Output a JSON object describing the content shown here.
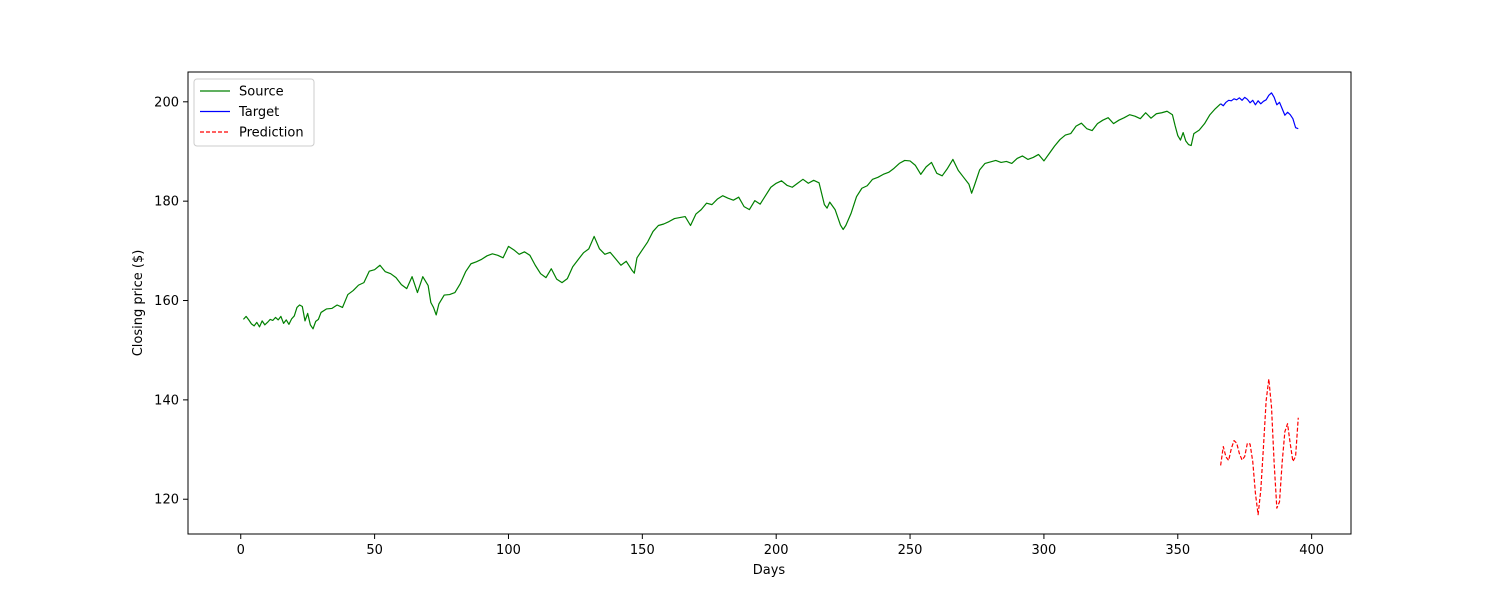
{
  "chart_data": {
    "type": "line",
    "title": "",
    "xlabel": "Days",
    "ylabel": "Closing price ($)",
    "xlim": [
      -19.7,
      414.7
    ],
    "ylim": [
      113.0,
      206.0
    ],
    "xticks": [
      0,
      50,
      100,
      150,
      200,
      250,
      300,
      350,
      400
    ],
    "yticks": [
      120,
      140,
      160,
      180,
      200
    ],
    "legend_position": "top-left",
    "series": [
      {
        "name": "Source",
        "color": "#008000",
        "dash": "solid",
        "points": [
          [
            1,
            156.2
          ],
          [
            2,
            156.8
          ],
          [
            3,
            156.1
          ],
          [
            4,
            155.3
          ],
          [
            5,
            154.9
          ],
          [
            6,
            155.6
          ],
          [
            7,
            154.7
          ],
          [
            8,
            155.9
          ],
          [
            9,
            155.1
          ],
          [
            10,
            155.6
          ],
          [
            11,
            156.2
          ],
          [
            12,
            156.0
          ],
          [
            13,
            156.6
          ],
          [
            14,
            156.1
          ],
          [
            15,
            156.8
          ],
          [
            16,
            155.4
          ],
          [
            17,
            156.1
          ],
          [
            18,
            155.2
          ],
          [
            19,
            156.3
          ],
          [
            20,
            156.9
          ],
          [
            21,
            158.6
          ],
          [
            22,
            159.1
          ],
          [
            23,
            158.8
          ],
          [
            24,
            155.9
          ],
          [
            25,
            157.4
          ],
          [
            26,
            155.1
          ],
          [
            27,
            154.3
          ],
          [
            28,
            155.8
          ],
          [
            29,
            156.2
          ],
          [
            30,
            157.6
          ],
          [
            32,
            158.3
          ],
          [
            34,
            158.4
          ],
          [
            36,
            159.1
          ],
          [
            38,
            158.6
          ],
          [
            40,
            161.2
          ],
          [
            42,
            162.0
          ],
          [
            44,
            163.1
          ],
          [
            46,
            163.6
          ],
          [
            48,
            165.9
          ],
          [
            50,
            166.2
          ],
          [
            52,
            167.1
          ],
          [
            54,
            165.8
          ],
          [
            56,
            165.4
          ],
          [
            58,
            164.6
          ],
          [
            60,
            163.2
          ],
          [
            62,
            162.4
          ],
          [
            64,
            164.8
          ],
          [
            66,
            161.6
          ],
          [
            68,
            164.8
          ],
          [
            70,
            163.0
          ],
          [
            71,
            159.6
          ],
          [
            72,
            158.6
          ],
          [
            73,
            157.1
          ],
          [
            74,
            159.3
          ],
          [
            76,
            161.1
          ],
          [
            78,
            161.2
          ],
          [
            80,
            161.6
          ],
          [
            82,
            163.4
          ],
          [
            84,
            165.8
          ],
          [
            86,
            167.4
          ],
          [
            88,
            167.8
          ],
          [
            90,
            168.3
          ],
          [
            92,
            169.0
          ],
          [
            94,
            169.4
          ],
          [
            96,
            169.1
          ],
          [
            98,
            168.6
          ],
          [
            100,
            170.9
          ],
          [
            102,
            170.2
          ],
          [
            104,
            169.3
          ],
          [
            106,
            169.8
          ],
          [
            108,
            169.1
          ],
          [
            110,
            167.1
          ],
          [
            112,
            165.4
          ],
          [
            114,
            164.6
          ],
          [
            116,
            166.4
          ],
          [
            118,
            164.3
          ],
          [
            120,
            163.6
          ],
          [
            122,
            164.4
          ],
          [
            124,
            166.8
          ],
          [
            126,
            168.2
          ],
          [
            128,
            169.6
          ],
          [
            130,
            170.4
          ],
          [
            132,
            172.9
          ],
          [
            134,
            170.4
          ],
          [
            136,
            169.3
          ],
          [
            138,
            169.7
          ],
          [
            140,
            168.4
          ],
          [
            142,
            167.1
          ],
          [
            144,
            167.9
          ],
          [
            146,
            166.2
          ],
          [
            147,
            165.5
          ],
          [
            148,
            168.6
          ],
          [
            150,
            170.2
          ],
          [
            152,
            171.8
          ],
          [
            154,
            173.9
          ],
          [
            156,
            175.1
          ],
          [
            158,
            175.4
          ],
          [
            160,
            175.9
          ],
          [
            162,
            176.5
          ],
          [
            164,
            176.7
          ],
          [
            166,
            176.9
          ],
          [
            168,
            175.1
          ],
          [
            170,
            177.4
          ],
          [
            172,
            178.3
          ],
          [
            174,
            179.6
          ],
          [
            176,
            179.3
          ],
          [
            178,
            180.4
          ],
          [
            180,
            181.1
          ],
          [
            182,
            180.6
          ],
          [
            184,
            180.2
          ],
          [
            186,
            180.8
          ],
          [
            188,
            178.9
          ],
          [
            190,
            178.3
          ],
          [
            192,
            180.1
          ],
          [
            194,
            179.4
          ],
          [
            196,
            181.1
          ],
          [
            198,
            182.8
          ],
          [
            200,
            183.6
          ],
          [
            202,
            184.1
          ],
          [
            204,
            183.2
          ],
          [
            206,
            182.8
          ],
          [
            208,
            183.6
          ],
          [
            210,
            184.4
          ],
          [
            212,
            183.6
          ],
          [
            214,
            184.2
          ],
          [
            216,
            183.7
          ],
          [
            218,
            179.3
          ],
          [
            219,
            178.6
          ],
          [
            220,
            179.8
          ],
          [
            222,
            178.3
          ],
          [
            224,
            175.2
          ],
          [
            225,
            174.3
          ],
          [
            226,
            175.1
          ],
          [
            228,
            177.6
          ],
          [
            230,
            180.9
          ],
          [
            232,
            182.6
          ],
          [
            234,
            183.1
          ],
          [
            236,
            184.4
          ],
          [
            238,
            184.8
          ],
          [
            240,
            185.4
          ],
          [
            242,
            185.8
          ],
          [
            244,
            186.6
          ],
          [
            246,
            187.6
          ],
          [
            248,
            188.2
          ],
          [
            250,
            188.1
          ],
          [
            252,
            187.2
          ],
          [
            254,
            185.4
          ],
          [
            256,
            186.9
          ],
          [
            258,
            187.8
          ],
          [
            260,
            185.6
          ],
          [
            262,
            185.1
          ],
          [
            264,
            186.6
          ],
          [
            266,
            188.4
          ],
          [
            268,
            186.2
          ],
          [
            270,
            184.8
          ],
          [
            272,
            183.4
          ],
          [
            273,
            181.6
          ],
          [
            274,
            183.1
          ],
          [
            276,
            186.3
          ],
          [
            278,
            187.6
          ],
          [
            280,
            187.9
          ],
          [
            282,
            188.2
          ],
          [
            284,
            187.8
          ],
          [
            286,
            188.0
          ],
          [
            288,
            187.6
          ],
          [
            290,
            188.6
          ],
          [
            292,
            189.1
          ],
          [
            294,
            188.4
          ],
          [
            296,
            188.8
          ],
          [
            298,
            189.4
          ],
          [
            300,
            188.1
          ],
          [
            302,
            189.6
          ],
          [
            304,
            191.1
          ],
          [
            306,
            192.4
          ],
          [
            308,
            193.3
          ],
          [
            310,
            193.6
          ],
          [
            312,
            195.1
          ],
          [
            314,
            195.7
          ],
          [
            316,
            194.6
          ],
          [
            318,
            194.2
          ],
          [
            320,
            195.6
          ],
          [
            322,
            196.3
          ],
          [
            324,
            196.8
          ],
          [
            326,
            195.6
          ],
          [
            328,
            196.3
          ],
          [
            330,
            196.8
          ],
          [
            332,
            197.4
          ],
          [
            334,
            197.1
          ],
          [
            336,
            196.6
          ],
          [
            338,
            197.8
          ],
          [
            340,
            196.7
          ],
          [
            342,
            197.6
          ],
          [
            344,
            197.8
          ],
          [
            346,
            198.1
          ],
          [
            348,
            197.4
          ],
          [
            349,
            195.2
          ],
          [
            350,
            193.2
          ],
          [
            351,
            192.3
          ],
          [
            352,
            193.8
          ],
          [
            353,
            192.1
          ],
          [
            354,
            191.4
          ],
          [
            355,
            191.2
          ],
          [
            356,
            193.6
          ],
          [
            358,
            194.3
          ],
          [
            360,
            195.6
          ],
          [
            362,
            197.4
          ],
          [
            364,
            198.6
          ],
          [
            365,
            199.1
          ],
          [
            366,
            199.6
          ]
        ]
      },
      {
        "name": "Target",
        "color": "#0000ff",
        "dash": "solid",
        "points": [
          [
            366,
            199.6
          ],
          [
            367,
            199.2
          ],
          [
            368,
            199.9
          ],
          [
            369,
            200.3
          ],
          [
            370,
            200.2
          ],
          [
            371,
            200.6
          ],
          [
            372,
            200.4
          ],
          [
            373,
            200.8
          ],
          [
            374,
            200.3
          ],
          [
            375,
            200.9
          ],
          [
            376,
            200.5
          ],
          [
            377,
            199.8
          ],
          [
            378,
            200.3
          ],
          [
            379,
            199.4
          ],
          [
            380,
            200.2
          ],
          [
            381,
            199.6
          ],
          [
            382,
            200.1
          ],
          [
            383,
            200.4
          ],
          [
            384,
            201.3
          ],
          [
            385,
            201.8
          ],
          [
            386,
            200.9
          ],
          [
            387,
            199.4
          ],
          [
            388,
            199.9
          ],
          [
            389,
            198.6
          ],
          [
            390,
            197.3
          ],
          [
            391,
            197.9
          ],
          [
            392,
            197.4
          ],
          [
            393,
            196.6
          ],
          [
            394,
            194.8
          ],
          [
            395,
            194.6
          ]
        ]
      },
      {
        "name": "Prediction",
        "color": "#ff0000",
        "dash": "dashed",
        "points": [
          [
            366,
            126.8
          ],
          [
            367,
            130.6
          ],
          [
            368,
            128.5
          ],
          [
            369,
            127.8
          ],
          [
            370,
            130.2
          ],
          [
            371,
            131.8
          ],
          [
            372,
            131.3
          ],
          [
            373,
            129.2
          ],
          [
            374,
            127.9
          ],
          [
            375,
            128.6
          ],
          [
            376,
            131.3
          ],
          [
            377,
            131.1
          ],
          [
            378,
            127.6
          ],
          [
            379,
            121.2
          ],
          [
            380,
            116.9
          ],
          [
            381,
            121.8
          ],
          [
            382,
            130.5
          ],
          [
            383,
            139.8
          ],
          [
            384,
            144.2
          ],
          [
            385,
            138.6
          ],
          [
            386,
            127.2
          ],
          [
            387,
            118.2
          ],
          [
            388,
            119.5
          ],
          [
            389,
            127.5
          ],
          [
            390,
            133.6
          ],
          [
            391,
            135.2
          ],
          [
            392,
            131.2
          ],
          [
            393,
            127.6
          ],
          [
            394,
            128.6
          ],
          [
            395,
            136.4
          ]
        ]
      }
    ]
  }
}
